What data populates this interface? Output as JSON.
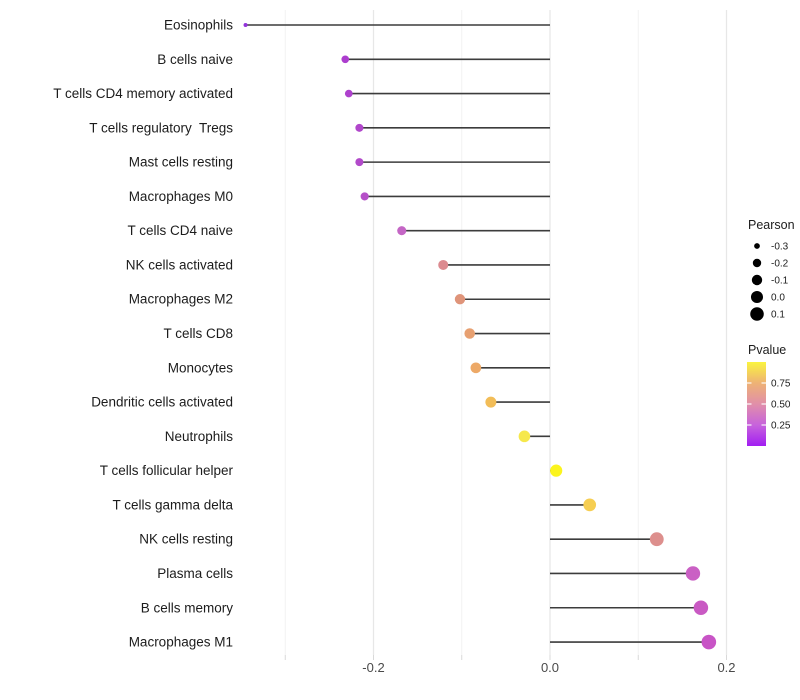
{
  "chart_data": {
    "type": "lollipop",
    "orientation": "horizontal",
    "title": "",
    "xlabel": "",
    "ylabel": "",
    "baseline": 0,
    "x_axis": {
      "range": [
        -0.36,
        0.21
      ],
      "gridline_values": [
        -0.3,
        -0.2,
        -0.1,
        0,
        0.1,
        0.2
      ],
      "ticks": [
        {
          "value": -0.2,
          "label": "-0.2"
        },
        {
          "value": 0,
          "label": "0.0"
        },
        {
          "value": 0.2,
          "label": "0.2"
        }
      ]
    },
    "points": [
      {
        "label": "Eosinophils",
        "pearson": -0.345,
        "pvalue": 0.05,
        "color": "#9333DB"
      },
      {
        "label": "B cells naive",
        "pearson": -0.232,
        "pvalue": 0.13,
        "color": "#AC3DCE"
      },
      {
        "label": "T cells CD4 memory activated",
        "pearson": -0.228,
        "pvalue": 0.14,
        "color": "#AE41CD"
      },
      {
        "label": "T cells regulatory  Tregs",
        "pearson": -0.216,
        "pvalue": 0.16,
        "color": "#B147CB"
      },
      {
        "label": "Mast cells resting",
        "pearson": -0.216,
        "pvalue": 0.17,
        "color": "#B24ACA"
      },
      {
        "label": "Macrophages M0",
        "pearson": -0.21,
        "pvalue": 0.18,
        "color": "#B550C8"
      },
      {
        "label": "T cells CD4 naive",
        "pearson": -0.168,
        "pvalue": 0.27,
        "color": "#C466C5"
      },
      {
        "label": "NK cells activated",
        "pearson": -0.121,
        "pvalue": 0.52,
        "color": "#DC8B90"
      },
      {
        "label": "Macrophages M2",
        "pearson": -0.102,
        "pvalue": 0.56,
        "color": "#DF947A"
      },
      {
        "label": "T cells CD8",
        "pearson": -0.091,
        "pvalue": 0.6,
        "color": "#E7A071"
      },
      {
        "label": "Monocytes",
        "pearson": -0.084,
        "pvalue": 0.63,
        "color": "#EDA967"
      },
      {
        "label": "Dendritic cells activated",
        "pearson": -0.067,
        "pvalue": 0.7,
        "color": "#F2BD58"
      },
      {
        "label": "Neutrophils",
        "pearson": -0.029,
        "pvalue": 0.85,
        "color": "#F6E84C"
      },
      {
        "label": "T cells follicular helper",
        "pearson": 0.007,
        "pvalue": 0.95,
        "color": "#FBF41D"
      },
      {
        "label": "T cells gamma delta",
        "pearson": 0.045,
        "pvalue": 0.75,
        "color": "#F6CE52"
      },
      {
        "label": "NK cells resting",
        "pearson": 0.121,
        "pvalue": 0.53,
        "color": "#DD8F8D"
      },
      {
        "label": "Plasma cells",
        "pearson": 0.162,
        "pvalue": 0.32,
        "color": "#CA60C4"
      },
      {
        "label": "B cells memory",
        "pearson": 0.171,
        "pvalue": 0.3,
        "color": "#C95AC3"
      },
      {
        "label": "Macrophages M1",
        "pearson": 0.18,
        "pvalue": 0.28,
        "color": "#C854C6"
      }
    ],
    "legend_size": {
      "title": "Pearson",
      "entries": [
        {
          "label": "-0.3",
          "value": -0.3
        },
        {
          "label": "-0.2",
          "value": -0.2
        },
        {
          "label": "-0.1",
          "value": -0.1
        },
        {
          "label": "0.0",
          "value": 0.0
        },
        {
          "label": "0.1",
          "value": 0.1
        }
      ],
      "dot_color": "#000000"
    },
    "legend_color": {
      "title": "Pvalue",
      "ticks": [
        {
          "label": "0.75",
          "pos": 0.25
        },
        {
          "label": "0.50",
          "pos": 0.5
        },
        {
          "label": "0.25",
          "pos": 0.75
        }
      ],
      "gradient_stops": [
        {
          "offset": 0.0,
          "color": "#FAF43F"
        },
        {
          "offset": 0.25,
          "color": "#EEB275"
        },
        {
          "offset": 0.5,
          "color": "#E18FA9"
        },
        {
          "offset": 0.75,
          "color": "#C763DC"
        },
        {
          "offset": 1.0,
          "color": "#A21EF2"
        }
      ]
    },
    "layout_hints": {
      "grid": "vertical-only",
      "legend_position": "right",
      "background": "#ffffff"
    }
  }
}
